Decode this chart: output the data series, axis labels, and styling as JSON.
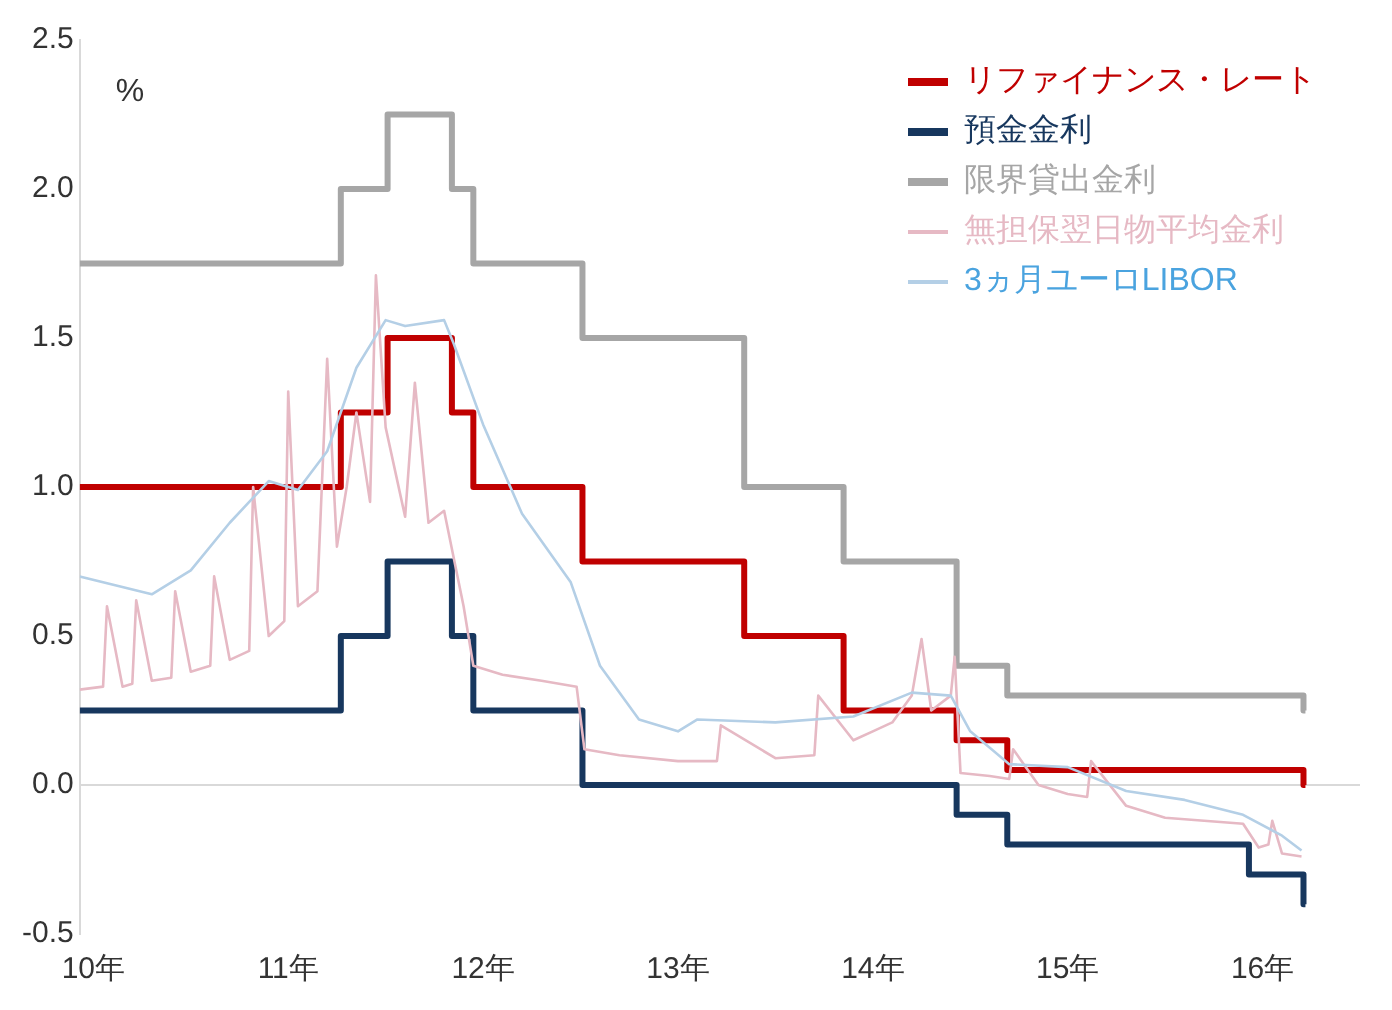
{
  "chart_data": {
    "type": "line",
    "ylabel": "%",
    "xlim": [
      9.93,
      16.5
    ],
    "xticks": [
      {
        "value": 10,
        "label": "10年"
      },
      {
        "value": 11,
        "label": "11年"
      },
      {
        "value": 12,
        "label": "12年"
      },
      {
        "value": 13,
        "label": "13年"
      },
      {
        "value": 14,
        "label": "14年"
      },
      {
        "value": 15,
        "label": "15年"
      },
      {
        "value": 16,
        "label": "16年"
      }
    ],
    "ylim": [
      -0.5,
      2.5
    ],
    "yticks": [
      -0.5,
      {
        "value": 0,
        "label": "0.0"
      },
      0.5,
      {
        "value": 1,
        "label": "1.0"
      },
      1.5,
      {
        "value": 2,
        "label": "2.0"
      },
      2.5
    ],
    "grid": false,
    "legend": "top right",
    "ref_lines": [
      {
        "axis": "y",
        "value": 0,
        "color": "#d9d9d9"
      }
    ],
    "series": [
      {
        "name": "リファイナンス・レート",
        "type": "step",
        "color": "#c00000",
        "x": [
          9.93,
          11.27,
          11.51,
          11.84,
          11.95,
          12.51,
          13.34,
          13.85,
          14.43,
          14.69,
          16.21,
          16.22
        ],
        "values": [
          1.0,
          1.25,
          1.5,
          1.25,
          1.0,
          0.75,
          0.5,
          0.25,
          0.15,
          0.05,
          0.0,
          0.0
        ]
      },
      {
        "name": "預金金利",
        "type": "step",
        "color": "#17375e",
        "x": [
          9.93,
          11.27,
          11.51,
          11.84,
          11.95,
          12.51,
          14.43,
          14.69,
          15.93,
          16.21,
          16.22
        ],
        "values": [
          0.25,
          0.5,
          0.75,
          0.5,
          0.25,
          0.0,
          -0.1,
          -0.2,
          -0.3,
          -0.4,
          -0.4
        ]
      },
      {
        "name": "限界貸出金利",
        "type": "step",
        "color": "#a6a6a6",
        "x": [
          9.93,
          11.27,
          11.51,
          11.84,
          11.95,
          12.51,
          13.34,
          13.85,
          14.43,
          14.69,
          16.21,
          16.22
        ],
        "values": [
          1.75,
          2.0,
          2.25,
          2.0,
          1.75,
          1.5,
          1.0,
          0.75,
          0.4,
          0.3,
          0.25,
          0.25
        ]
      },
      {
        "name": "無担保翌日物平均金利",
        "type": "line",
        "color": "#e6b9c4",
        "x": [
          9.93,
          10.05,
          10.07,
          10.15,
          10.2,
          10.22,
          10.3,
          10.4,
          10.42,
          10.5,
          10.6,
          10.62,
          10.7,
          10.8,
          10.82,
          10.9,
          10.98,
          11.0,
          11.05,
          11.15,
          11.2,
          11.25,
          11.3,
          11.35,
          11.42,
          11.45,
          11.5,
          11.6,
          11.65,
          11.72,
          11.8,
          11.9,
          11.95,
          12.1,
          12.3,
          12.48,
          12.52,
          12.7,
          13.0,
          13.2,
          13.22,
          13.5,
          13.7,
          13.72,
          13.9,
          14.0,
          14.1,
          14.2,
          14.25,
          14.3,
          14.4,
          14.42,
          14.45,
          14.6,
          14.7,
          14.72,
          14.85,
          15.0,
          15.1,
          15.12,
          15.3,
          15.5,
          15.7,
          15.9,
          15.98,
          16.03,
          16.05,
          16.1,
          16.2
        ],
        "values": [
          0.32,
          0.33,
          0.6,
          0.33,
          0.34,
          0.62,
          0.35,
          0.36,
          0.65,
          0.38,
          0.4,
          0.7,
          0.42,
          0.45,
          1.0,
          0.5,
          0.55,
          1.32,
          0.6,
          0.65,
          1.43,
          0.8,
          1.0,
          1.25,
          0.95,
          1.71,
          1.2,
          0.9,
          1.35,
          0.88,
          0.92,
          0.6,
          0.4,
          0.37,
          0.35,
          0.33,
          0.12,
          0.1,
          0.08,
          0.08,
          0.2,
          0.09,
          0.1,
          0.3,
          0.15,
          0.18,
          0.21,
          0.3,
          0.49,
          0.25,
          0.3,
          0.43,
          0.04,
          0.03,
          0.02,
          0.12,
          0.0,
          -0.03,
          -0.04,
          0.08,
          -0.07,
          -0.11,
          -0.12,
          -0.13,
          -0.21,
          -0.2,
          -0.12,
          -0.23,
          -0.24
        ]
      },
      {
        "name": "3ヵ月ユーロLIBOR",
        "type": "line",
        "color": "#b4cfe6",
        "x": [
          9.93,
          10.3,
          10.5,
          10.7,
          10.9,
          11.05,
          11.2,
          11.35,
          11.5,
          11.6,
          11.8,
          11.85,
          12.0,
          12.2,
          12.45,
          12.6,
          12.8,
          13.0,
          13.1,
          13.5,
          13.9,
          14.2,
          14.4,
          14.5,
          14.7,
          15.0,
          15.3,
          15.6,
          15.9,
          16.1,
          16.2
        ],
        "values": [
          0.7,
          0.64,
          0.72,
          0.88,
          1.02,
          0.99,
          1.12,
          1.4,
          1.56,
          1.54,
          1.56,
          1.48,
          1.21,
          0.91,
          0.68,
          0.4,
          0.22,
          0.18,
          0.22,
          0.21,
          0.23,
          0.31,
          0.3,
          0.18,
          0.07,
          0.06,
          -0.02,
          -0.05,
          -0.1,
          -0.17,
          -0.22
        ]
      }
    ]
  }
}
